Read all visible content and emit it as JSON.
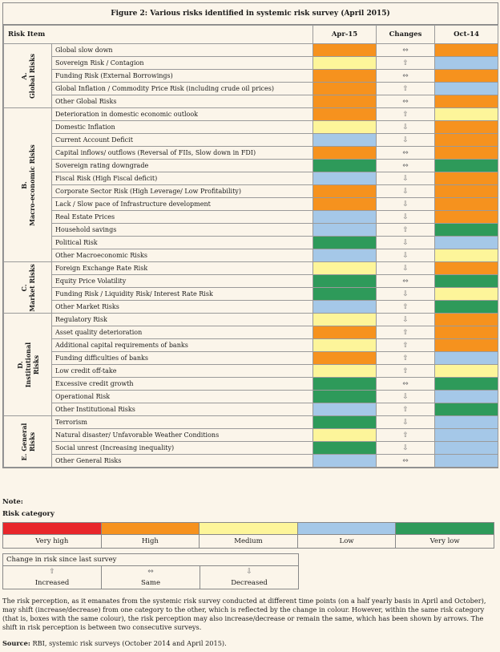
{
  "figure_title": "Figure 2: Various risks identified in systemic risk survey (April 2015)",
  "headers": {
    "item": "Risk Item",
    "apr": "Apr-15",
    "changes": "Changes",
    "oct": "Oct-14"
  },
  "colors": {
    "very_high": "#e8262a",
    "high": "#f6921e",
    "medium": "#fdf59a",
    "low": "#a5c8e8",
    "very_low": "#2e9a5a"
  },
  "categories": [
    {
      "label_line1": "A.",
      "label_line2": "Global Risks",
      "items": [
        {
          "name": "Global slow down",
          "apr": "high",
          "change": "same",
          "oct": "high"
        },
        {
          "name": "Sovereign Risk / Contagion",
          "apr": "medium",
          "change": "increased",
          "oct": "low"
        },
        {
          "name": "Funding Risk  (External Borrowings)",
          "apr": "high",
          "change": "same",
          "oct": "high"
        },
        {
          "name": "Global Inflation / Commodity Price Risk (including crude oil prices)",
          "apr": "high",
          "change": "increased",
          "oct": "low"
        },
        {
          "name": "Other Global Risks",
          "apr": "high",
          "change": "same",
          "oct": "high"
        }
      ]
    },
    {
      "label_line1": "B.",
      "label_line2": "Macro-economic Risks",
      "items": [
        {
          "name": "Deterioration in domestic economic outlook",
          "apr": "high",
          "change": "increased",
          "oct": "medium"
        },
        {
          "name": "Domestic Inflation",
          "apr": "medium",
          "change": "decreased",
          "oct": "high"
        },
        {
          "name": "Current Account Deficit",
          "apr": "low",
          "change": "decreased",
          "oct": "high"
        },
        {
          "name": "Capital inflows/ outflows (Reversal of FIIs, Slow down in FDI)",
          "apr": "high",
          "change": "same",
          "oct": "high"
        },
        {
          "name": "Sovereign rating downgrade",
          "apr": "very_low",
          "change": "same",
          "oct": "very_low"
        },
        {
          "name": "Fiscal Risk (High Fiscal deficit)",
          "apr": "low",
          "change": "decreased",
          "oct": "high"
        },
        {
          "name": "Corporate Sector Risk (High Leverage/ Low Profitability)",
          "apr": "high",
          "change": "decreased",
          "oct": "high"
        },
        {
          "name": "Lack / Slow pace of  Infrastructure development",
          "apr": "high",
          "change": "decreased",
          "oct": "high"
        },
        {
          "name": "Real Estate Prices",
          "apr": "low",
          "change": "decreased",
          "oct": "high"
        },
        {
          "name": "Household savings",
          "apr": "low",
          "change": "increased",
          "oct": "very_low"
        },
        {
          "name": "Political Risk",
          "apr": "very_low",
          "change": "decreased",
          "oct": "low"
        },
        {
          "name": "Other Macroeconomic Risks",
          "apr": "low",
          "change": "decreased",
          "oct": "medium"
        }
      ]
    },
    {
      "label_line1": "C.",
      "label_line2": "Market Risks",
      "items": [
        {
          "name": "Foreign Exchange Rate Risk",
          "apr": "medium",
          "change": "decreased",
          "oct": "high"
        },
        {
          "name": "Equity Price Volatility",
          "apr": "very_low",
          "change": "same",
          "oct": "very_low"
        },
        {
          "name": "Funding Risk / Liquidity Risk/ Interest Rate Risk",
          "apr": "very_low",
          "change": "decreased",
          "oct": "medium"
        },
        {
          "name": "Other Market Risks",
          "apr": "low",
          "change": "increased",
          "oct": "very_low"
        }
      ]
    },
    {
      "label_line1": "D.",
      "label_line2": "Institutional",
      "label_line3": "Risks",
      "items": [
        {
          "name": "Regulatory Risk",
          "apr": "medium",
          "change": "decreased",
          "oct": "high"
        },
        {
          "name": "Asset quality deterioration",
          "apr": "high",
          "change": "increased",
          "oct": "high"
        },
        {
          "name": "Additional capital requirements of banks",
          "apr": "medium",
          "change": "increased",
          "oct": "high"
        },
        {
          "name": "Funding difficulties of banks",
          "apr": "high",
          "change": "increased",
          "oct": "low"
        },
        {
          "name": "Low credit off-take",
          "apr": "medium",
          "change": "increased",
          "oct": "medium"
        },
        {
          "name": "Excessive credit growth",
          "apr": "very_low",
          "change": "same",
          "oct": "very_low"
        },
        {
          "name": "Operational Risk",
          "apr": "very_low",
          "change": "decreased",
          "oct": "low"
        },
        {
          "name": "Other Institutional Risks",
          "apr": "low",
          "change": "increased",
          "oct": "very_low"
        }
      ]
    },
    {
      "label_line1": "E. General",
      "label_line2": "Risks",
      "items": [
        {
          "name": "Terrorism",
          "apr": "very_low",
          "change": "decreased",
          "oct": "low"
        },
        {
          "name": "Natural disaster/ Unfavorable Weather Conditions",
          "apr": "medium",
          "change": "increased",
          "oct": "low"
        },
        {
          "name": "Social unrest (Increasing inequality)",
          "apr": "very_low",
          "change": "decreased",
          "oct": "low"
        },
        {
          "name": "Other General Risks",
          "apr": "low",
          "change": "same",
          "oct": "low"
        }
      ]
    }
  ],
  "note_label": "Note:",
  "risk_category_title": "Risk category",
  "risk_levels": [
    {
      "key": "very_high",
      "label": "Very high"
    },
    {
      "key": "high",
      "label": "High"
    },
    {
      "key": "medium",
      "label": "Medium"
    },
    {
      "key": "low",
      "label": "Low"
    },
    {
      "key": "very_low",
      "label": "Very low"
    }
  ],
  "change_legend": {
    "title": "Change in risk since last survey",
    "increased": "Increased",
    "same": "Same",
    "decreased": "Decreased"
  },
  "footnote": "The risk perception, as it emanates from the systemic risk survey conducted at different time points (on a half yearly basis in April and October), may shift (increase/decrease) from one category to the other, which is reflected by the change in colour. However, within the same risk category (that is, boxes with the same colour), the risk perception may also increase/decrease or remain the same, which has been shown by arrows. The shift in risk perception is between two consecutive surveys.",
  "source_label": "Source:",
  "source_text": " RBI, systemic risk surveys (October 2014 and April 2015)."
}
